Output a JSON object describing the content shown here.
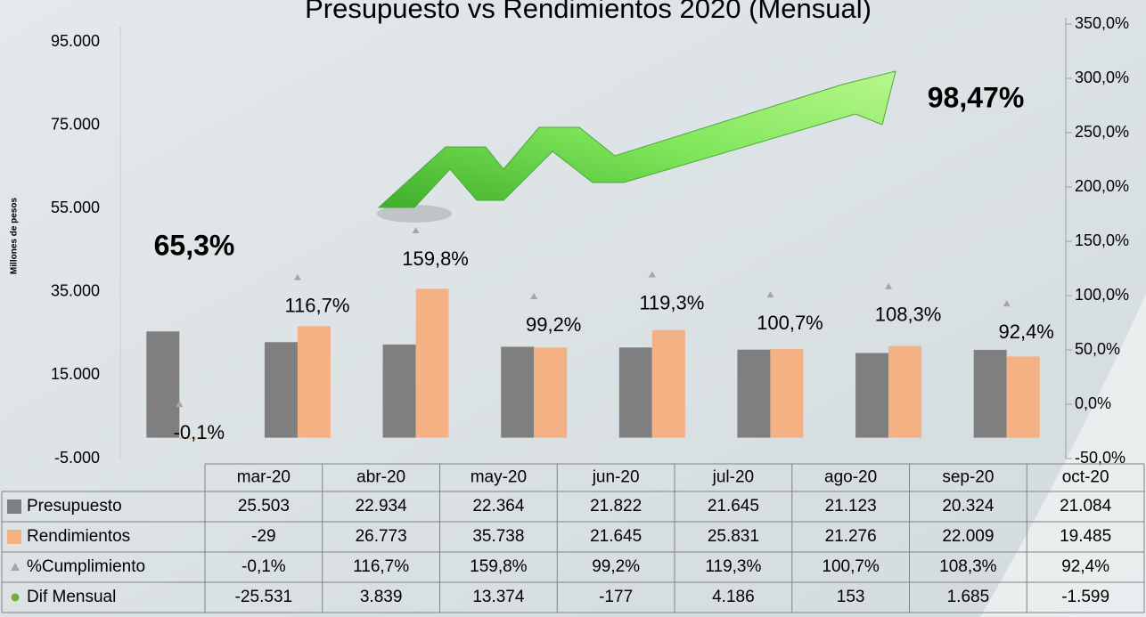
{
  "chart_data": {
    "type": "bar",
    "title": "Presupuesto vs Rendimientos 2020 (Mensual)",
    "y_label": "Millones de pesos",
    "annotations": [
      "65,3%",
      "98,47%"
    ],
    "categories": [
      "mar-20",
      "abr-20",
      "may-20",
      "jun-20",
      "jul-20",
      "ago-20",
      "sep-20",
      "oct-20"
    ],
    "series": [
      {
        "name": "Presupuesto",
        "type": "bar",
        "color": "#7f7f7f",
        "values": [
          25503,
          22934,
          22364,
          21822,
          21645,
          21123,
          20324,
          21084
        ],
        "value_labels": [
          "25.503",
          "22.934",
          "22.364",
          "21.822",
          "21.645",
          "21.123",
          "20.324",
          "21.084"
        ]
      },
      {
        "name": "Rendimientos",
        "type": "bar",
        "color": "#f4b183",
        "values": [
          -29,
          26773,
          35738,
          21645,
          25831,
          21276,
          22009,
          19485
        ],
        "value_labels": [
          "-29",
          "26.773",
          "35.738",
          "21.645",
          "25.831",
          "21.276",
          "22.009",
          "19.485"
        ]
      },
      {
        "name": "%Cumplimiento",
        "type": "scatter",
        "marker": "triangle",
        "axis": "y2",
        "color": "#a6a6a6",
        "values": [
          -0.1,
          116.7,
          159.8,
          99.2,
          119.3,
          100.7,
          108.3,
          92.4
        ],
        "value_labels": [
          "-0,1%",
          "116,7%",
          "159,8%",
          "99,2%",
          "119,3%",
          "100,7%",
          "108,3%",
          "92,4%"
        ]
      },
      {
        "name": "Dif Mensual",
        "marker": "circle",
        "color": "#70ad47",
        "values": [
          -25531,
          3839,
          13374,
          -177,
          4186,
          153,
          1685,
          -1599
        ],
        "value_labels": [
          "-25.531",
          "3.839",
          "13.374",
          "-177",
          "4.186",
          "153",
          "1.685",
          "-1.599"
        ]
      }
    ],
    "ylim": [
      -5000,
      95000
    ],
    "yticks": [
      {
        "value": -5000,
        "label": "-5.000"
      },
      {
        "value": 15000,
        "label": "15.000"
      },
      {
        "value": 35000,
        "label": "35.000"
      },
      {
        "value": 55000,
        "label": "55.000"
      },
      {
        "value": 75000,
        "label": "75.000"
      },
      {
        "value": 95000,
        "label": "95.000"
      }
    ],
    "y2lim": [
      -50,
      350
    ],
    "y2ticks": [
      {
        "value": -50,
        "label": "-50,0%"
      },
      {
        "value": 0,
        "label": "0,0%"
      },
      {
        "value": 50,
        "label": "50,0%"
      },
      {
        "value": 100,
        "label": "100,0%"
      },
      {
        "value": 150,
        "label": "150,0%"
      },
      {
        "value": 200,
        "label": "200,0%"
      },
      {
        "value": 250,
        "label": "250,0%"
      },
      {
        "value": 300,
        "label": "300,0%"
      },
      {
        "value": 350,
        "label": "350,0%"
      }
    ]
  }
}
